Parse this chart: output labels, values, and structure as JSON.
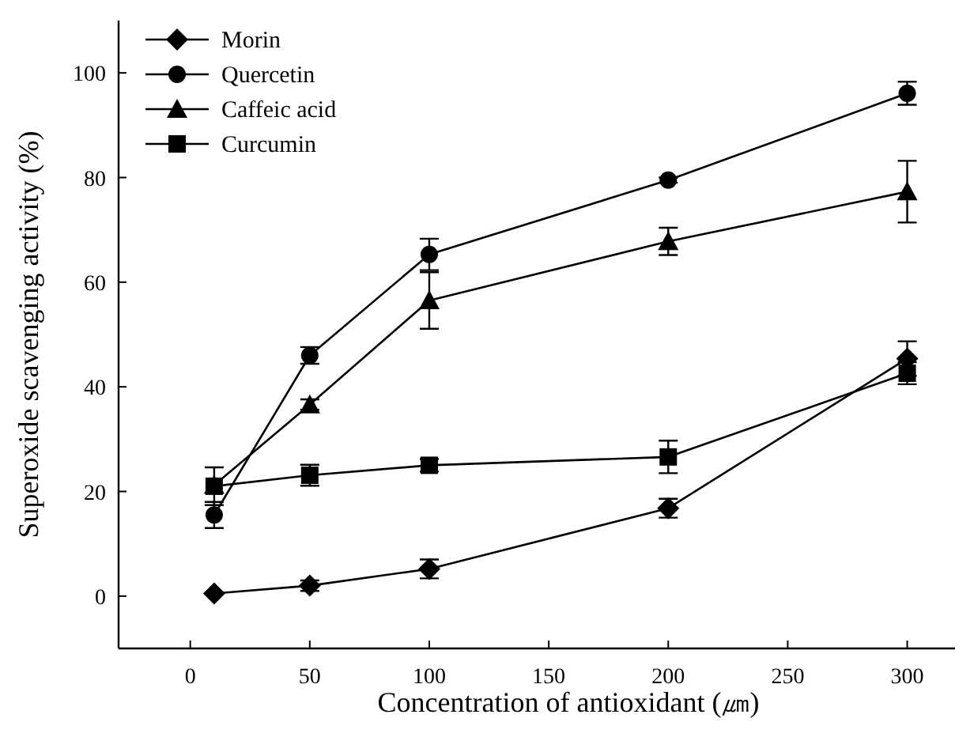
{
  "chart_data": {
    "type": "line",
    "xlabel": "Concentration of antioxidant  (㎛)",
    "ylabel": "Superoxide scavenging activity (%)",
    "x": [
      10,
      50,
      100,
      200,
      300
    ],
    "xlim": [
      -30,
      320
    ],
    "xticks": [
      0,
      50,
      100,
      150,
      200,
      250,
      300
    ],
    "ylim": [
      -10,
      110
    ],
    "yticks": [
      0,
      20,
      40,
      60,
      80,
      100
    ],
    "grid": false,
    "legend": "top left",
    "line_style": "solid",
    "series": [
      {
        "name": "Morin",
        "color": "#000000",
        "marker": "diamond",
        "values": [
          0.5,
          2,
          5.2,
          16.8,
          45.4
        ],
        "errors": [
          null,
          1,
          1.8,
          1.8,
          3.3
        ]
      },
      {
        "name": "Quercetin",
        "color": "#000000",
        "marker": "circle",
        "values": [
          15.5,
          46,
          65.3,
          79.5,
          96.1
        ],
        "errors": [
          2.5,
          1.6,
          3,
          0.5,
          2.2
        ]
      },
      {
        "name": "Caffeic acid",
        "color": "#000000",
        "marker": "triangle",
        "values": [
          21.2,
          36.6,
          56.5,
          67.8,
          77.3
        ],
        "errors": [
          null,
          1,
          5.4,
          2.6,
          5.9
        ]
      },
      {
        "name": "Curcumin",
        "color": "#000000",
        "marker": "square",
        "values": [
          21,
          23.1,
          25,
          26.6,
          42.6
        ],
        "errors": [
          3.6,
          2,
          1.2,
          3.1,
          2.1
        ]
      }
    ]
  }
}
